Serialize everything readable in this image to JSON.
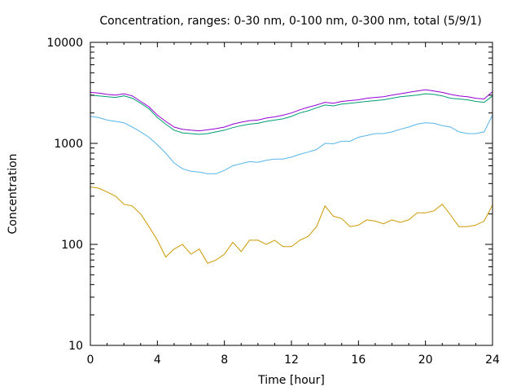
{
  "chart_data": {
    "type": "line",
    "title": "Concentration, ranges: 0-30 nm, 0-100 nm, 0-300 nm, total (5/9/1)",
    "xlabel": "Time [hour]",
    "ylabel": "Concentration",
    "xlim": [
      0,
      24
    ],
    "ylim": [
      10,
      10000
    ],
    "yscale": "log",
    "grid": false,
    "legend": "none",
    "x_ticks": [
      "0",
      "4",
      "8",
      "12",
      "16",
      "20",
      "24"
    ],
    "y_ticks": [
      "10",
      "100",
      "1000",
      "10000"
    ],
    "x": [
      0,
      0.5,
      1,
      1.5,
      2,
      2.5,
      3,
      3.5,
      4,
      4.5,
      5,
      5.5,
      6,
      6.5,
      7,
      7.5,
      8,
      8.5,
      9,
      9.5,
      10,
      10.5,
      11,
      11.5,
      12,
      12.5,
      13,
      13.5,
      14,
      14.5,
      15,
      15.5,
      16,
      16.5,
      17,
      17.5,
      18,
      18.5,
      19,
      19.5,
      20,
      20.5,
      21,
      21.5,
      22,
      22.5,
      23,
      23.5,
      24
    ],
    "series": [
      {
        "color": "#cc9900",
        "values": [
          370,
          360,
          330,
          300,
          250,
          240,
          200,
          150,
          110,
          75,
          90,
          100,
          80,
          90,
          65,
          70,
          80,
          105,
          85,
          110,
          110,
          100,
          110,
          95,
          95,
          110,
          120,
          150,
          240,
          190,
          180,
          150,
          155,
          175,
          170,
          160,
          175,
          165,
          175,
          205,
          205,
          215,
          250,
          195,
          150,
          150,
          155,
          170,
          245
        ]
      },
      {
        "color": "#56b4e9",
        "values": [
          1850,
          1800,
          1700,
          1650,
          1600,
          1450,
          1300,
          1150,
          970,
          800,
          640,
          560,
          530,
          520,
          500,
          500,
          540,
          600,
          630,
          660,
          650,
          680,
          700,
          700,
          730,
          780,
          820,
          870,
          1000,
          990,
          1050,
          1050,
          1150,
          1200,
          1250,
          1250,
          1300,
          1380,
          1450,
          1550,
          1600,
          1580,
          1500,
          1450,
          1300,
          1250,
          1250,
          1300,
          1900
        ]
      },
      {
        "color": "#009e73",
        "values": [
          3000,
          2950,
          2900,
          2850,
          2950,
          2800,
          2500,
          2200,
          1800,
          1550,
          1350,
          1270,
          1250,
          1230,
          1250,
          1300,
          1350,
          1430,
          1500,
          1550,
          1580,
          1650,
          1700,
          1750,
          1850,
          2000,
          2100,
          2250,
          2400,
          2350,
          2450,
          2500,
          2550,
          2600,
          2650,
          2700,
          2800,
          2900,
          2950,
          3000,
          3100,
          3050,
          2950,
          2800,
          2750,
          2700,
          2600,
          2550,
          2950
        ]
      },
      {
        "color": "#9400d3",
        "values": [
          3200,
          3150,
          3050,
          3000,
          3100,
          2950,
          2600,
          2300,
          1900,
          1650,
          1450,
          1380,
          1350,
          1330,
          1360,
          1400,
          1450,
          1550,
          1620,
          1680,
          1700,
          1780,
          1830,
          1900,
          2000,
          2150,
          2280,
          2400,
          2550,
          2500,
          2600,
          2650,
          2700,
          2800,
          2850,
          2900,
          3000,
          3100,
          3200,
          3300,
          3400,
          3300,
          3200,
          3050,
          2950,
          2900,
          2800,
          2750,
          3250
        ]
      }
    ]
  }
}
